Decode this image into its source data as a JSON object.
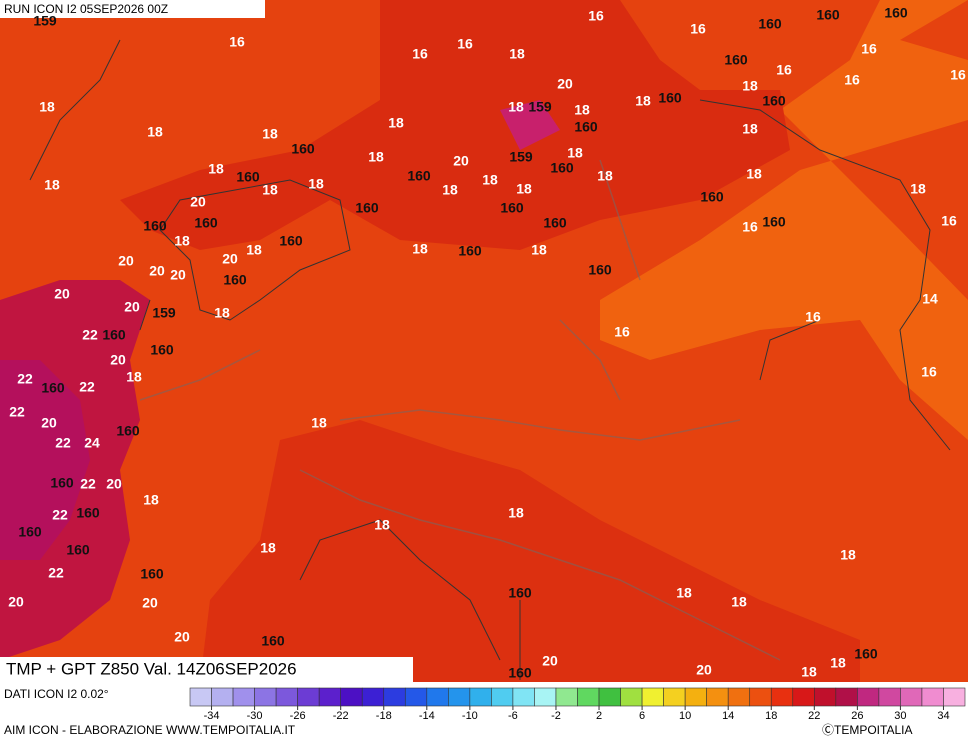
{
  "header": {
    "run": "RUN ICON I2 05SEP2026 00Z"
  },
  "map": {
    "title": "TMP + GPT Z850 Val. 14Z06SEP2026",
    "contour_labels": [
      159,
      16,
      16,
      16,
      18,
      16,
      16,
      160,
      160,
      160,
      16,
      160,
      16,
      16,
      16,
      18,
      18,
      18,
      160,
      18,
      18,
      18,
      159,
      20,
      18,
      160,
      18,
      160,
      18,
      160,
      18,
      159,
      18,
      160,
      18,
      20,
      160,
      18,
      18,
      18,
      160,
      160,
      18,
      160,
      18,
      160,
      18,
      18,
      160,
      18,
      18,
      20,
      160,
      18,
      160,
      20,
      18,
      160,
      160,
      20,
      20,
      20,
      20,
      20,
      159,
      18,
      22,
      160,
      160,
      20,
      18,
      22,
      160,
      22,
      22,
      20,
      22,
      24,
      160,
      18,
      160,
      22,
      20,
      18,
      22,
      160,
      160,
      160,
      22,
      160,
      20,
      20,
      20,
      160,
      18,
      18,
      18,
      18,
      160,
      18,
      18,
      160,
      160,
      20,
      20,
      18,
      18,
      160,
      160,
      16,
      16,
      160,
      18,
      18,
      16,
      14,
      16,
      16,
      16
    ]
  },
  "footer": {
    "source": "DATI ICON I2 0.02°",
    "credit": "AIM ICON - ELABORAZIONE WWW.TEMPOITALIA.IT",
    "copyright": "ⒸTEMPOITALIA"
  },
  "colorbar": {
    "range": [
      -36,
      36
    ],
    "ticks": [
      -34,
      -30,
      -26,
      -22,
      -18,
      -14,
      -10,
      -6,
      -2,
      2,
      6,
      10,
      14,
      18,
      22,
      26,
      30,
      34
    ],
    "colors": [
      "#c8c8f4",
      "#b4b0f0",
      "#a090ec",
      "#8c74e4",
      "#7c58dc",
      "#6c3cd4",
      "#5c20cc",
      "#4c10c4",
      "#3c20d4",
      "#2c3ce0",
      "#2458e8",
      "#2078ec",
      "#2494ec",
      "#30b0ec",
      "#50ccf0",
      "#80e4f4",
      "#a8f4f4",
      "#90e890",
      "#60d860",
      "#40c040",
      "#a0e040",
      "#f0f030",
      "#f4d020",
      "#f4b010",
      "#f49010",
      "#f07010",
      "#ec5010",
      "#e83010",
      "#d81818",
      "#c0102c",
      "#b01048",
      "#c02880",
      "#d048a0",
      "#e068b8",
      "#f08cd0",
      "#f8b0e0"
    ]
  }
}
